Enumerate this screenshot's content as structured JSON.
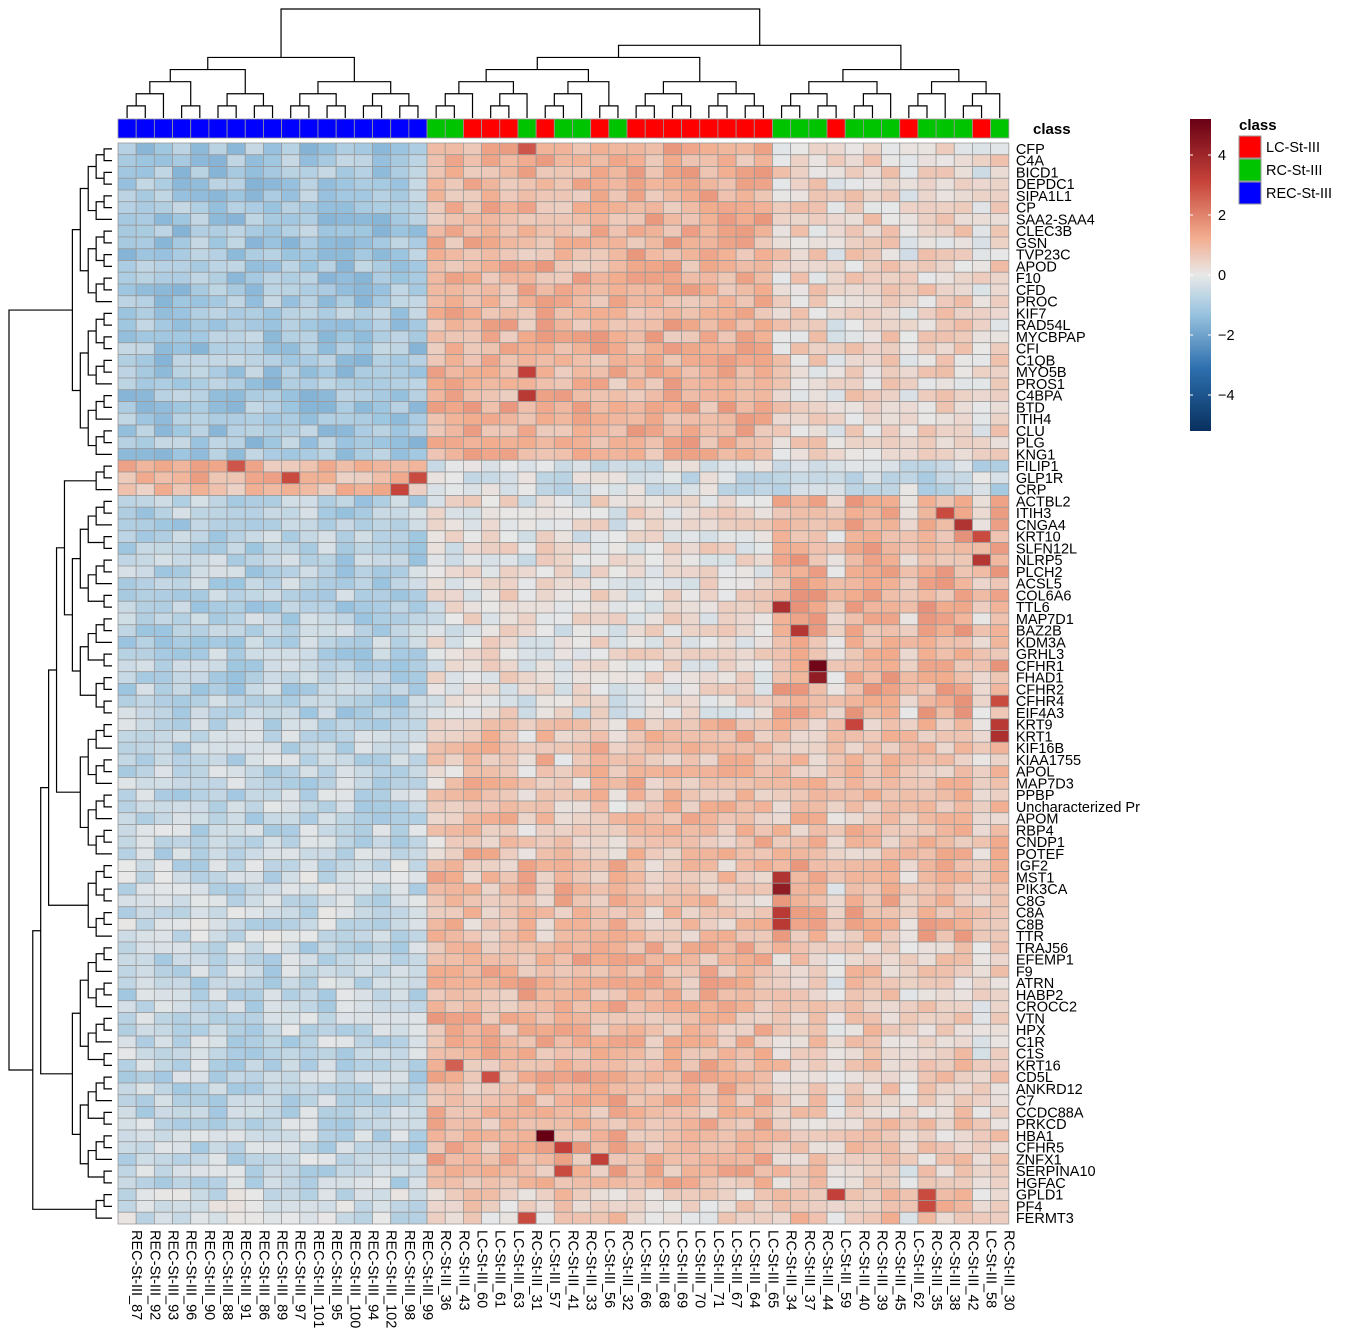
{
  "chart_data": {
    "type": "heatmap",
    "color_scale": {
      "min": -5.2,
      "max": 5.2,
      "ticks": [
        4,
        2,
        0,
        -2,
        -4
      ],
      "tick_labels": [
        "4",
        "2",
        "0",
        "−2",
        "−4"
      ],
      "low_color": "#08305F",
      "mid_color": "#E8E8E8",
      "high_color": "#680014"
    },
    "annotation": {
      "title": "class",
      "legend_title": "class",
      "categories": [
        {
          "name": "LC-St-III",
          "color": "#FF0000"
        },
        {
          "name": "RC-St-III",
          "color": "#00C400"
        },
        {
          "name": "REC-St-III",
          "color": "#0000FF"
        }
      ]
    },
    "columns": [
      "REC-St-III_87",
      "REC-St-III_92",
      "REC-St-III_93",
      "REC-St-III_96",
      "REC-St-III_90",
      "REC-St-III_88",
      "REC-St-III_91",
      "REC-St-III_86",
      "REC-St-III_89",
      "REC-St-III_97",
      "REC-St-III_101",
      "REC-St-III_95",
      "REC-St-III_100",
      "REC-St-III_94",
      "REC-St-III_102",
      "REC-St-III_98",
      "REC-St-III_99",
      "RC-St-III_36",
      "RC-St-III_43",
      "LC-St-III_60",
      "LC-St-III_61",
      "LC-St-III_63",
      "RC-St-III_31",
      "LC-St-III_57",
      "RC-St-III_41",
      "RC-St-III_33",
      "LC-St-III_56",
      "RC-St-III_32",
      "LC-St-III_66",
      "LC-St-III_68",
      "LC-St-III_69",
      "LC-St-III_70",
      "LC-St-III_71",
      "LC-St-III_67",
      "LC-St-III_64",
      "LC-St-III_65",
      "RC-St-III_34",
      "RC-St-III_37",
      "RC-St-III_44",
      "LC-St-III_59",
      "RC-St-III_40",
      "RC-St-III_39",
      "RC-St-III_45",
      "LC-St-III_62",
      "RC-St-III_35",
      "RC-St-III_38",
      "RC-St-III_42",
      "LC-St-III_58",
      "RC-St-III_30"
    ],
    "column_class": [
      "REC-St-III",
      "REC-St-III",
      "REC-St-III",
      "REC-St-III",
      "REC-St-III",
      "REC-St-III",
      "REC-St-III",
      "REC-St-III",
      "REC-St-III",
      "REC-St-III",
      "REC-St-III",
      "REC-St-III",
      "REC-St-III",
      "REC-St-III",
      "REC-St-III",
      "REC-St-III",
      "REC-St-III",
      "RC-St-III",
      "RC-St-III",
      "LC-St-III",
      "LC-St-III",
      "LC-St-III",
      "RC-St-III",
      "LC-St-III",
      "RC-St-III",
      "RC-St-III",
      "LC-St-III",
      "RC-St-III",
      "LC-St-III",
      "LC-St-III",
      "LC-St-III",
      "LC-St-III",
      "LC-St-III",
      "LC-St-III",
      "LC-St-III",
      "LC-St-III",
      "RC-St-III",
      "RC-St-III",
      "RC-St-III",
      "LC-St-III",
      "RC-St-III",
      "RC-St-III",
      "RC-St-III",
      "LC-St-III",
      "RC-St-III",
      "RC-St-III",
      "RC-St-III",
      "LC-St-III",
      "RC-St-III"
    ],
    "rows": [
      "CFP",
      "C4A",
      "BICD1",
      "DEPDC1",
      "SIPA1L1",
      "CP",
      "SAA2-SAA4",
      "CLEC3B",
      "GSN",
      "TVP23C",
      "APOD",
      "F10",
      "CFD",
      "PROC",
      "KIF7",
      "RAD54L",
      "MYCBPAP",
      "CFI",
      "C1QB",
      "MYO5B",
      "PROS1",
      "C4BPA",
      "BTD",
      "ITIH4",
      "CLU",
      "PLG",
      "KNG1",
      "FILIP1",
      "GLP1R",
      "CRP",
      "ACTBL2",
      "ITIH3",
      "CNGA4",
      "KRT10",
      "SLFN12L",
      "NLRP5",
      "PLCH2",
      "ACSL5",
      "COL6A6",
      "TTL6",
      "MAP7D1",
      "BAZ2B",
      "KDM3A",
      "GRHL3",
      "CFHR1",
      "FHAD1",
      "CFHR2",
      "CFHR4",
      "EIF4A3",
      "KRT9",
      "KRT1",
      "KIF16B",
      "KIAA1755",
      "APOL",
      "MAP7D3",
      "PPBP",
      "Uncharacterized Pr",
      "APOM",
      "RBP4",
      "CNDP1",
      "POTEF",
      "IGF2",
      "MST1",
      "PIK3CA",
      "C8G",
      "C8A",
      "C8B",
      "TTR",
      "TRAJ56",
      "EFEMP1",
      "F9",
      "ATRN",
      "HABP2",
      "CROCC2",
      "VTN",
      "HPX",
      "C1R",
      "C1S",
      "KRT16",
      "CD5L",
      "ANKRD12",
      "C7",
      "CCDC88A",
      "PRKCD",
      "HBA1",
      "CFHR5",
      "ZNFX1",
      "SERPINA10",
      "HGFAC",
      "GPLD1",
      "PF4",
      "FERMT3"
    ],
    "row_groups": [
      {
        "from": "CFP",
        "to": "KNG1",
        "REC": -1.1,
        "LC": 1.1,
        "RC": 1.0,
        "LCright": 0.1,
        "RCright": 0.4
      },
      {
        "from": "FILIP1",
        "to": "CRP",
        "REC": 1.0,
        "LC": -0.3,
        "RC": -0.3,
        "LCright": -0.5,
        "RCright": -0.6
      },
      {
        "from": "ACTBL2",
        "to": "EIF4A3",
        "REC": -0.8,
        "LC": 0.2,
        "RC": 0.0,
        "LCright": 0.5,
        "RCright": 1.2
      },
      {
        "from": "KRT9",
        "to": "POTEF",
        "REC": -0.6,
        "LC": 0.9,
        "RC": 0.5,
        "LCright": 0.6,
        "RCright": 0.8
      },
      {
        "from": "IGF2",
        "to": "TTR",
        "REC": -0.5,
        "LC": 0.7,
        "RC": 1.0,
        "LCright": 0.3,
        "RCright": 1.1
      },
      {
        "from": "TRAJ56",
        "to": "HGFAC",
        "REC": -0.6,
        "LC": 1.0,
        "RC": 1.1,
        "LCright": 0.2,
        "RCright": 0.6
      },
      {
        "from": "GPLD1",
        "to": "FERMT3",
        "REC": -0.4,
        "LC": 0.4,
        "RC": 0.6,
        "LCright": 0.3,
        "RCright": 0.8
      }
    ],
    "highlights": [
      {
        "row": "CFP",
        "col": "RC-St-III_31",
        "value": 2.8
      },
      {
        "row": "MYO5B",
        "col": "RC-St-III_31",
        "value": 3.2
      },
      {
        "row": "C4BPA",
        "col": "RC-St-III_31",
        "value": 3.4
      },
      {
        "row": "FILIP1",
        "col": "REC-St-III_91",
        "value": 2.8
      },
      {
        "row": "GLP1R",
        "col": "REC-St-III_97",
        "value": 3.0
      },
      {
        "row": "GLP1R",
        "col": "REC-St-III_99",
        "value": 3.0
      },
      {
        "row": "CRP",
        "col": "REC-St-III_98",
        "value": 3.1
      },
      {
        "row": "ITIH3",
        "col": "RC-St-III_38",
        "value": 3.0
      },
      {
        "row": "CNGA4",
        "col": "RC-St-III_42",
        "value": 3.6
      },
      {
        "row": "KRT10",
        "col": "LC-St-III_58",
        "value": 3.0
      },
      {
        "row": "NLRP5",
        "col": "LC-St-III_58",
        "value": 3.5
      },
      {
        "row": "TTL6",
        "col": "RC-St-III_34",
        "value": 3.7
      },
      {
        "row": "BAZ2B",
        "col": "RC-St-III_37",
        "value": 3.5
      },
      {
        "row": "CFHR1",
        "col": "RC-St-III_44",
        "value": 5.0
      },
      {
        "row": "FHAD1",
        "col": "RC-St-III_44",
        "value": 4.3
      },
      {
        "row": "CFHR4",
        "col": "RC-St-III_30",
        "value": 3.0
      },
      {
        "row": "KRT9",
        "col": "RC-St-III_40",
        "value": 3.1
      },
      {
        "row": "KRT9",
        "col": "RC-St-III_30",
        "value": 3.4
      },
      {
        "row": "KRT1",
        "col": "RC-St-III_30",
        "value": 3.7
      },
      {
        "row": "MST1",
        "col": "RC-St-III_34",
        "value": 3.6
      },
      {
        "row": "PIK3CA",
        "col": "RC-St-III_34",
        "value": 4.3
      },
      {
        "row": "C8A",
        "col": "RC-St-III_34",
        "value": 3.4
      },
      {
        "row": "C8B",
        "col": "RC-St-III_34",
        "value": 3.4
      },
      {
        "row": "KRT16",
        "col": "RC-St-III_43",
        "value": 2.6
      },
      {
        "row": "CD5L",
        "col": "LC-St-III_61",
        "value": 2.9
      },
      {
        "row": "HBA1",
        "col": "LC-St-III_57",
        "value": 5.2
      },
      {
        "row": "CFHR5",
        "col": "RC-St-III_41",
        "value": 3.2
      },
      {
        "row": "ZNFX1",
        "col": "LC-St-III_56",
        "value": 3.2
      },
      {
        "row": "SERPINA10",
        "col": "RC-St-III_41",
        "value": 3.0
      },
      {
        "row": "GPLD1",
        "col": "LC-St-III_59",
        "value": 3.2
      },
      {
        "row": "GPLD1",
        "col": "RC-St-III_35",
        "value": 3.0
      },
      {
        "row": "PF4",
        "col": "RC-St-III_35",
        "value": 3.0
      },
      {
        "row": "FERMT3",
        "col": "RC-St-III_31",
        "value": 3.0
      }
    ],
    "row_dendrogram": true,
    "column_dendrogram": true,
    "legend_position": "top-right"
  }
}
